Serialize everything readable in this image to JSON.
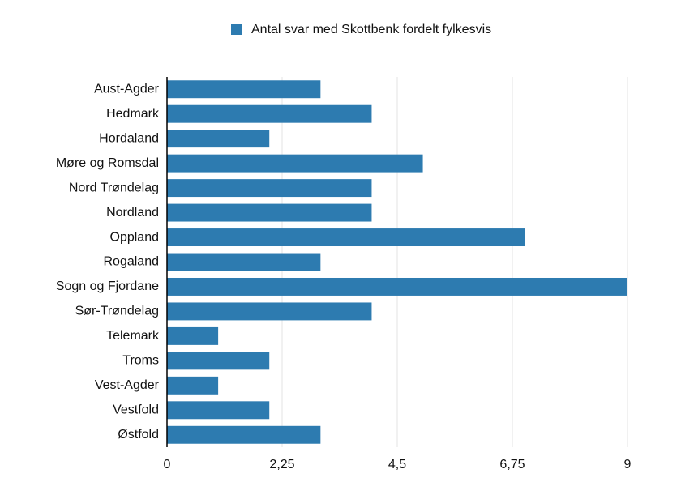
{
  "chart_data": {
    "type": "bar",
    "orientation": "horizontal",
    "categories": [
      "Aust-Agder",
      "Hedmark",
      "Hordaland",
      "Møre og Romsdal",
      "Nord Trøndelag",
      "Nordland",
      "Oppland",
      "Rogaland",
      "Sogn og Fjordane",
      "Sør-Trøndelag",
      "Telemark",
      "Troms",
      "Vest-Agder",
      "Vestfold",
      "Østfold"
    ],
    "series": [
      {
        "name": "Antal svar med Skottbenk fordelt fylkesvis",
        "color": "#2d7bb0",
        "values": [
          3,
          4,
          2,
          5,
          4,
          4,
          7,
          3,
          9,
          4,
          1,
          2,
          1,
          2,
          3
        ]
      }
    ],
    "xlim": [
      0,
      9
    ],
    "xticks": [
      0,
      {
        "value": 2.25,
        "label": "2,25"
      },
      {
        "value": 4.5,
        "label": "4,5"
      },
      {
        "value": 6.75,
        "label": "6,75"
      },
      9
    ],
    "grid": true,
    "legend": "top"
  }
}
